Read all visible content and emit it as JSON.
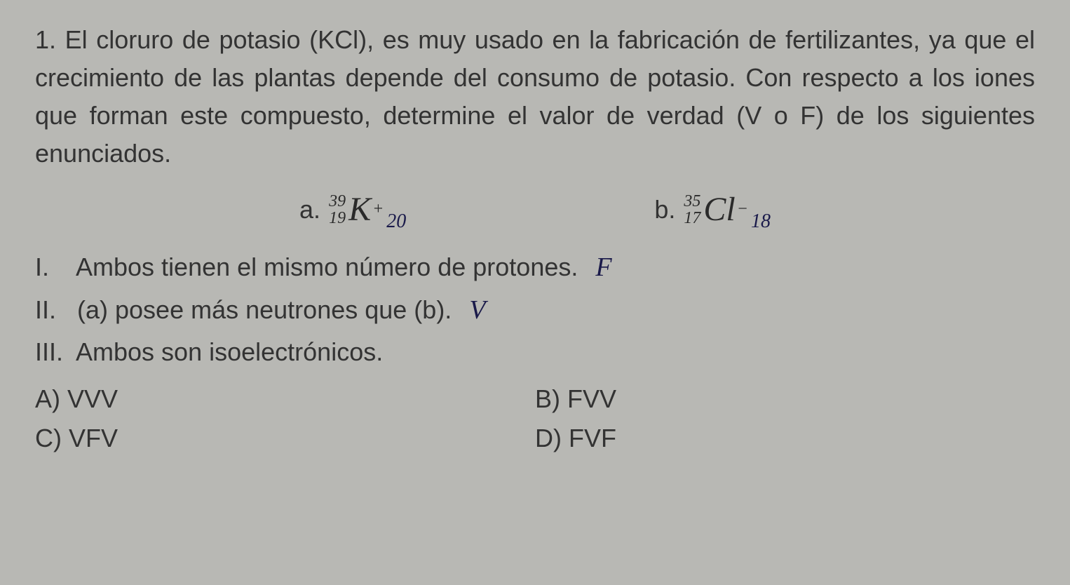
{
  "question": {
    "number": "1.",
    "text": "El cloruro de potasio (KCl), es muy usado en la fabricación de fertilizantes, ya que el crecimiento de las plantas depende del consumo de potasio. Con respecto a los iones que forman este compuesto, determine el valor de verdad (V o F) de los siguientes enunciados."
  },
  "isotopes": {
    "a": {
      "label": "a.",
      "mass": "39",
      "atomic": "19",
      "symbol": "K",
      "charge": "+",
      "handwritten_electrons": "20"
    },
    "b": {
      "label": "b.",
      "mass": "35",
      "atomic": "17",
      "symbol": "Cl",
      "charge": "−",
      "handwritten_electrons": "18"
    }
  },
  "statements": {
    "i": {
      "roman": "I.",
      "text": "Ambos tienen el mismo número de protones.",
      "handwritten": "F"
    },
    "ii": {
      "roman": "II.",
      "text": "(a) posee más neutrones que (b).",
      "handwritten": "V"
    },
    "iii": {
      "roman": "III.",
      "text": "Ambos son isoelectrónicos.",
      "handwritten": ""
    }
  },
  "options": {
    "a": {
      "label": "A)",
      "value": "VVV"
    },
    "b": {
      "label": "B)",
      "value": "FVV"
    },
    "c": {
      "label": "C)",
      "value": "VFV"
    },
    "d": {
      "label": "D)",
      "value": "FVF"
    }
  },
  "colors": {
    "background": "#b8b8b4",
    "text": "#333333",
    "handwriting": "#1a1a4a"
  }
}
